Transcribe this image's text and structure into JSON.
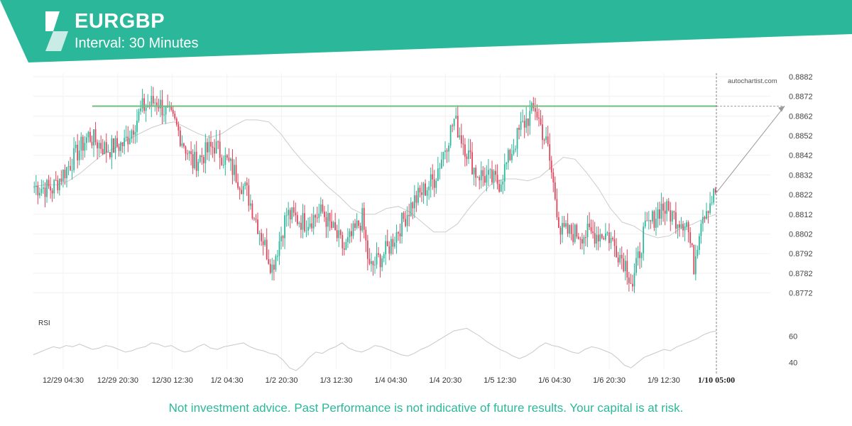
{
  "header": {
    "symbol": "EURGBP",
    "interval": "Interval: 30 Minutes",
    "brand_color": "#2bb89a"
  },
  "watermark": "autochartist.com",
  "disclaimer": "Not investment advice. Past Performance is not indicative of future results. Your capital is at risk.",
  "chart_data": [
    {
      "type": "candlestick",
      "title": "EURGBP",
      "y_tick_labels": [
        "0.8882",
        "0.8872",
        "0.8862",
        "0.8852",
        "0.8842",
        "0.8832",
        "0.8822",
        "0.8812",
        "0.8802",
        "0.8792",
        "0.8782",
        "0.8772"
      ],
      "x_tick_labels": [
        "12/29 04:30",
        "12/29 20:30",
        "12/30 12:30",
        "1/2 04:30",
        "1/2 20:30",
        "1/3 12:30",
        "1/4 04:30",
        "1/4 20:30",
        "1/5 12:30",
        "1/6 04:30",
        "1/6 20:30",
        "1/9 12:30"
      ],
      "current_time_label": "1/10 05:00",
      "ylim": [
        0.87675,
        0.88838
      ],
      "grid": true,
      "colors": {
        "up": "#2bb89a",
        "down": "#e0455b",
        "moving_average": "#cccccc",
        "resistance": "#6dbf7e",
        "projection": "#999999"
      },
      "resistance_level": 0.8867,
      "moving_average_y": [
        0.8826,
        0.8827,
        0.8827,
        0.8829,
        0.8833,
        0.8838,
        0.8843,
        0.8846,
        0.885,
        0.8853,
        0.8856,
        0.8858,
        0.8859,
        0.8856,
        0.8853,
        0.8851,
        0.8853,
        0.8857,
        0.886,
        0.886,
        0.8859,
        0.8853,
        0.8845,
        0.8838,
        0.8832,
        0.8826,
        0.8821,
        0.8815,
        0.8812,
        0.8812,
        0.8815,
        0.8816,
        0.8813,
        0.8808,
        0.8803,
        0.8803,
        0.8807,
        0.8815,
        0.8822,
        0.8828,
        0.883,
        0.883,
        0.8829,
        0.8831,
        0.8836,
        0.8841,
        0.884,
        0.8833,
        0.8825,
        0.8815,
        0.8808,
        0.8806,
        0.8802,
        0.88,
        0.8801,
        0.8805,
        0.8807,
        0.881,
        0.8812
      ],
      "projection": {
        "from": 0.8823,
        "to": 0.8867
      },
      "ohlc_waypoints": [
        {
          "bar": 0,
          "close": 0.8826
        },
        {
          "bar": 10,
          "close": 0.8825
        },
        {
          "bar": 20,
          "close": 0.8838
        },
        {
          "bar": 30,
          "close": 0.8852
        },
        {
          "bar": 40,
          "close": 0.8845
        },
        {
          "bar": 50,
          "close": 0.8848
        },
        {
          "bar": 60,
          "close": 0.8866
        },
        {
          "bar": 68,
          "close": 0.887
        },
        {
          "bar": 78,
          "close": 0.8858
        },
        {
          "bar": 88,
          "close": 0.8838
        },
        {
          "bar": 100,
          "close": 0.8847
        },
        {
          "bar": 110,
          "close": 0.8835
        },
        {
          "bar": 118,
          "close": 0.8823
        },
        {
          "bar": 132,
          "close": 0.8785
        },
        {
          "bar": 140,
          "close": 0.8812
        },
        {
          "bar": 150,
          "close": 0.8808
        },
        {
          "bar": 160,
          "close": 0.8813
        },
        {
          "bar": 172,
          "close": 0.8794
        },
        {
          "bar": 182,
          "close": 0.881
        },
        {
          "bar": 186,
          "close": 0.8784
        },
        {
          "bar": 196,
          "close": 0.8794
        },
        {
          "bar": 210,
          "close": 0.8818
        },
        {
          "bar": 222,
          "close": 0.883
        },
        {
          "bar": 233,
          "close": 0.886
        },
        {
          "bar": 245,
          "close": 0.8833
        },
        {
          "bar": 258,
          "close": 0.8828
        },
        {
          "bar": 270,
          "close": 0.8856
        },
        {
          "bar": 278,
          "close": 0.8866
        },
        {
          "bar": 285,
          "close": 0.8845
        },
        {
          "bar": 292,
          "close": 0.8803
        },
        {
          "bar": 305,
          "close": 0.8802
        },
        {
          "bar": 318,
          "close": 0.8802
        },
        {
          "bar": 328,
          "close": 0.8787
        },
        {
          "bar": 332,
          "close": 0.8776
        },
        {
          "bar": 338,
          "close": 0.8802
        },
        {
          "bar": 348,
          "close": 0.8816
        },
        {
          "bar": 356,
          "close": 0.881
        },
        {
          "bar": 362,
          "close": 0.8808
        },
        {
          "bar": 366,
          "close": 0.8786
        },
        {
          "bar": 370,
          "close": 0.8811
        },
        {
          "bar": 378,
          "close": 0.8823
        }
      ],
      "rsi": {
        "label": "RSI",
        "y_tick_labels": [
          "60",
          "40"
        ],
        "ylim": [
          35,
          70
        ],
        "values": [
          46,
          48,
          50,
          52,
          51,
          53,
          52,
          54,
          52,
          50,
          51,
          53,
          52,
          50,
          48,
          49,
          51,
          52,
          55,
          54,
          52,
          53,
          50,
          48,
          49,
          52,
          54,
          51,
          50,
          52,
          53,
          54,
          55,
          52,
          50,
          49,
          47,
          46,
          42,
          36,
          34,
          38,
          44,
          48,
          47,
          50,
          52,
          55,
          51,
          49,
          48,
          50,
          53,
          52,
          50,
          48,
          46,
          45,
          47,
          50,
          52,
          55,
          58,
          61,
          64,
          65,
          66,
          63,
          60,
          56,
          53,
          50,
          48,
          45,
          43,
          45,
          48,
          52,
          55,
          53,
          52,
          50,
          48,
          47,
          50,
          52,
          51,
          49,
          47,
          43,
          38,
          36,
          40,
          44,
          46,
          48,
          50,
          49,
          52,
          54,
          56,
          58,
          61,
          63,
          64
        ]
      }
    }
  ]
}
